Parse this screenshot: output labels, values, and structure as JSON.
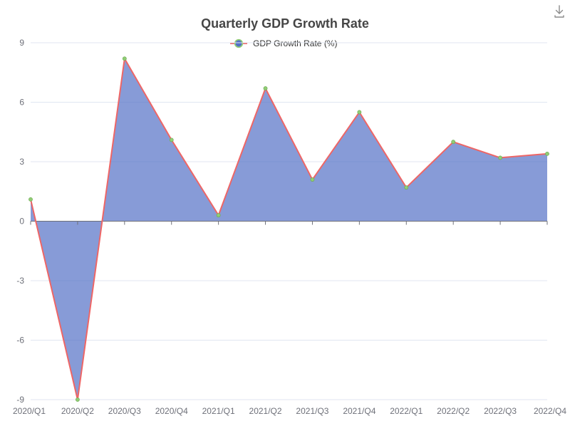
{
  "toolbar": {
    "download_icon": "download-icon"
  },
  "chart_data": {
    "type": "area",
    "title": "Quarterly GDP Growth Rate",
    "xlabel": "",
    "ylabel": "",
    "categories": [
      "2020/Q1",
      "2020/Q2",
      "2020/Q3",
      "2020/Q4",
      "2021/Q1",
      "2021/Q2",
      "2021/Q3",
      "2021/Q4",
      "2022/Q1",
      "2022/Q2",
      "2022/Q3",
      "2022/Q4"
    ],
    "series": [
      {
        "name": "GDP Growth Rate (%)",
        "values": [
          1.1,
          -9.0,
          8.2,
          4.1,
          0.3,
          6.7,
          2.1,
          5.5,
          1.7,
          4.0,
          3.2,
          3.4
        ]
      }
    ],
    "ylim": [
      -9,
      9
    ],
    "yticks": [
      -9,
      -6,
      -3,
      0,
      3,
      6,
      9
    ],
    "grid": true,
    "legend_position": "top-center",
    "colors": {
      "area": "#5470c6",
      "line": "#ee6666",
      "marker": "#91cc75",
      "grid": "#e0e6f1",
      "axis": "#6e7079",
      "title": "#464646"
    }
  }
}
